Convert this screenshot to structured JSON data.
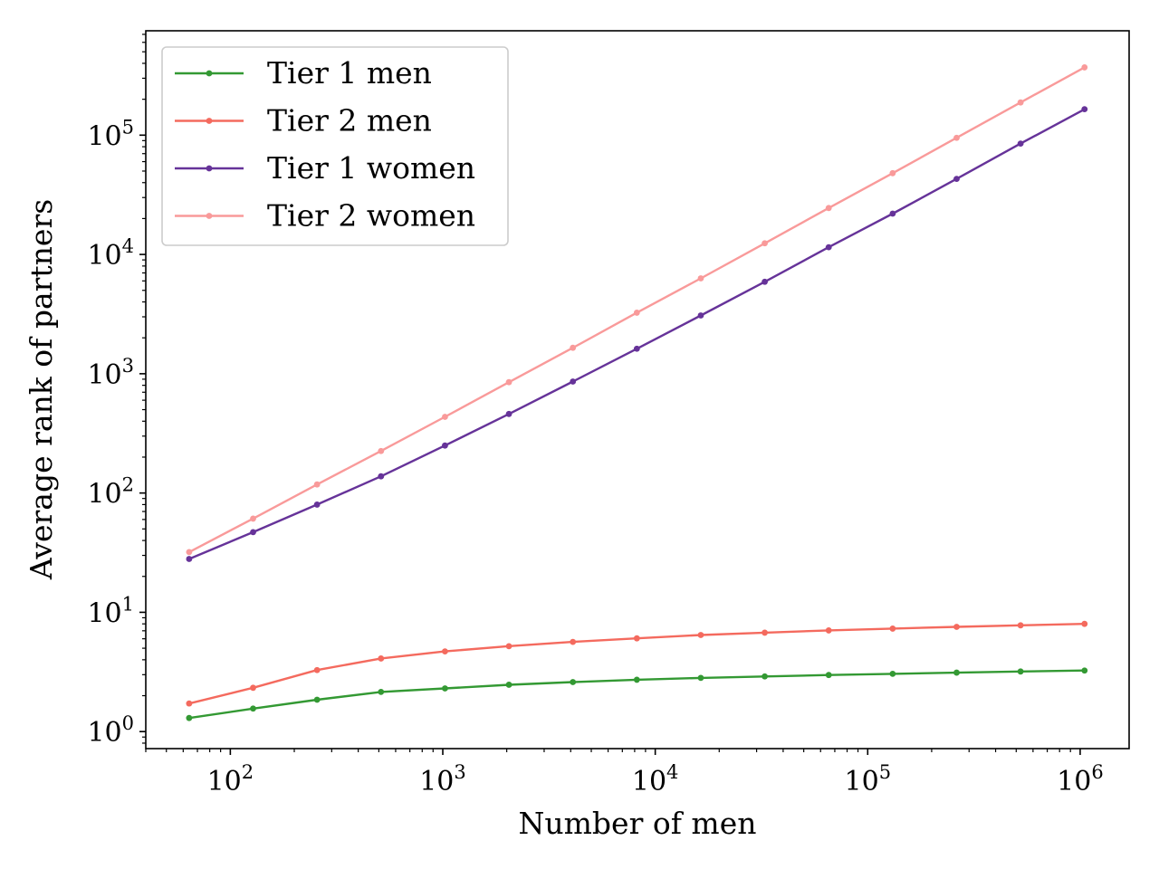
{
  "chart_data": {
    "type": "line",
    "xlabel": "Number of men",
    "ylabel": "Average rank of partners",
    "xscale": "log",
    "yscale": "log",
    "xlim": [
      40,
      1700000
    ],
    "ylim": [
      0.72,
      750000
    ],
    "xticks": [
      {
        "value": 100,
        "base": "10",
        "exp": "2"
      },
      {
        "value": 1000,
        "base": "10",
        "exp": "3"
      },
      {
        "value": 10000,
        "base": "10",
        "exp": "4"
      },
      {
        "value": 100000,
        "base": "10",
        "exp": "5"
      },
      {
        "value": 1000000,
        "base": "10",
        "exp": "6"
      }
    ],
    "yticks": [
      {
        "value": 1,
        "base": "10",
        "exp": "0"
      },
      {
        "value": 10,
        "base": "10",
        "exp": "1"
      },
      {
        "value": 100,
        "base": "10",
        "exp": "2"
      },
      {
        "value": 1000,
        "base": "10",
        "exp": "3"
      },
      {
        "value": 10000,
        "base": "10",
        "exp": "4"
      },
      {
        "value": 100000,
        "base": "10",
        "exp": "5"
      }
    ],
    "legend_position": "top-left",
    "x": [
      64,
      128,
      256,
      512,
      1024,
      2048,
      4096,
      8192,
      16384,
      32768,
      65536,
      131072,
      262144,
      524288,
      1048576
    ],
    "series": [
      {
        "name": "Tier 1 men",
        "color": "#339933",
        "values": [
          1.3,
          1.56,
          1.85,
          2.15,
          2.3,
          2.47,
          2.6,
          2.72,
          2.82,
          2.9,
          2.98,
          3.05,
          3.12,
          3.19,
          3.25
        ]
      },
      {
        "name": "Tier 2 men",
        "color": "#f46a5e",
        "values": [
          1.72,
          2.33,
          3.28,
          4.1,
          4.7,
          5.2,
          5.65,
          6.05,
          6.45,
          6.75,
          7.05,
          7.3,
          7.55,
          7.78,
          8.0
        ]
      },
      {
        "name": "Tier 1 women",
        "color": "#663399",
        "values": [
          28,
          47,
          80,
          138,
          250,
          460,
          860,
          1620,
          3080,
          5900,
          11500,
          22000,
          43000,
          85000,
          165000
        ]
      },
      {
        "name": "Tier 2 women",
        "color": "#f99a9a",
        "values": [
          32,
          61,
          118,
          225,
          435,
          850,
          1650,
          3250,
          6300,
          12400,
          24500,
          48000,
          95000,
          188000,
          370000
        ]
      }
    ]
  }
}
